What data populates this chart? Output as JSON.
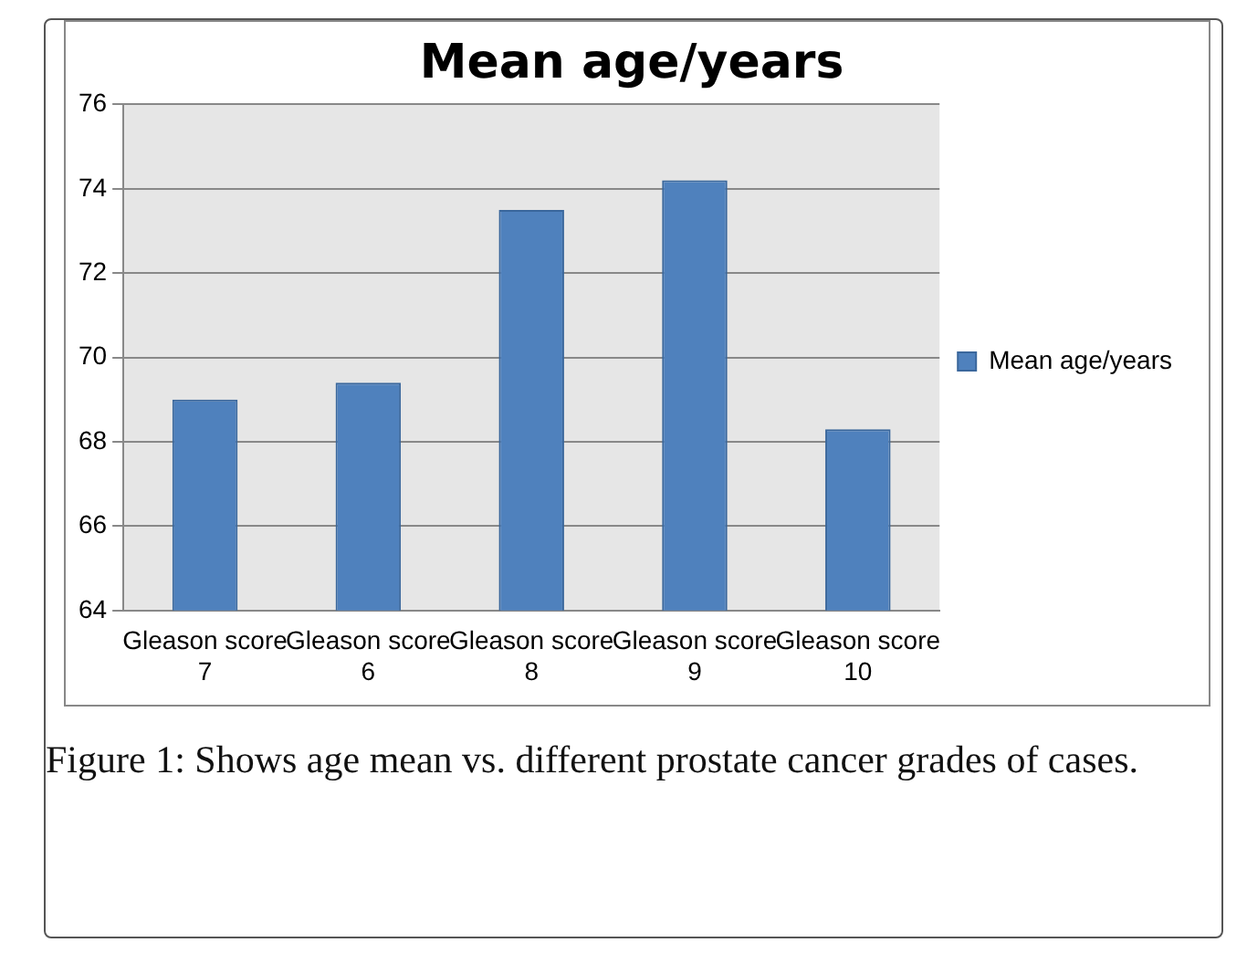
{
  "chart_data": {
    "type": "bar",
    "title": "Mean age/years",
    "categories": [
      "Gleason score 7",
      "Gleason score 6",
      "Gleason score 8",
      "Gleason score 9",
      "Gleason score 10"
    ],
    "series": [
      {
        "name": "Mean age/years",
        "color": "#4f81bd",
        "values": [
          69.0,
          69.4,
          73.5,
          74.2,
          68.3
        ]
      }
    ],
    "ylim": [
      64,
      76
    ],
    "yticks": [
      64,
      66,
      68,
      70,
      72,
      74,
      76
    ],
    "grid": "y",
    "legend": "right",
    "annotations": [
      "Figure 1: Shows age mean vs. different prostate cancer grades of cases."
    ]
  }
}
